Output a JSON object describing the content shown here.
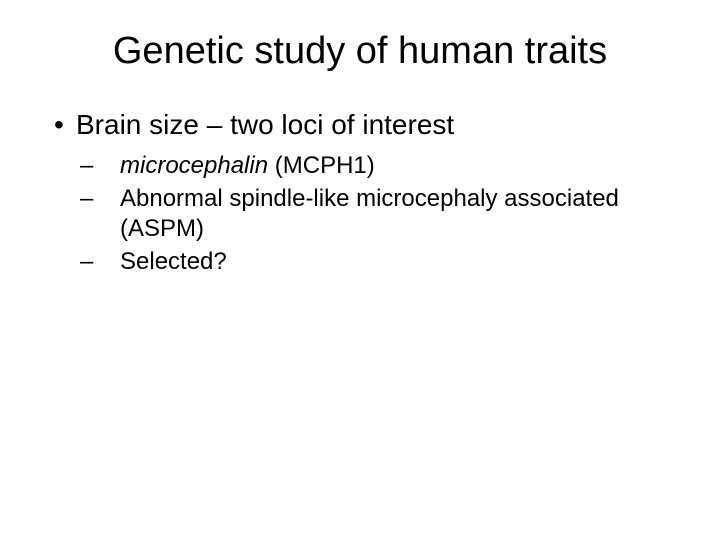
{
  "slide": {
    "background_color": "#ffffff",
    "text_color": "#000000",
    "title": {
      "text": "Genetic study of human traits",
      "fontsize": 38,
      "weight": "normal",
      "align": "center"
    },
    "bullet_l1": {
      "marker": "•",
      "text": "Brain size – two loci of interest",
      "fontsize": 28
    },
    "sub_bullets": {
      "marker": "–",
      "fontsize": 24,
      "items": [
        {
          "prefix_italic": "microcephalin",
          "rest": " (MCPH1)"
        },
        {
          "prefix_italic": "",
          "rest": "Abnormal spindle-like microcephaly associated (ASPM)"
        },
        {
          "prefix_italic": "",
          "rest": "Selected?"
        }
      ]
    }
  }
}
